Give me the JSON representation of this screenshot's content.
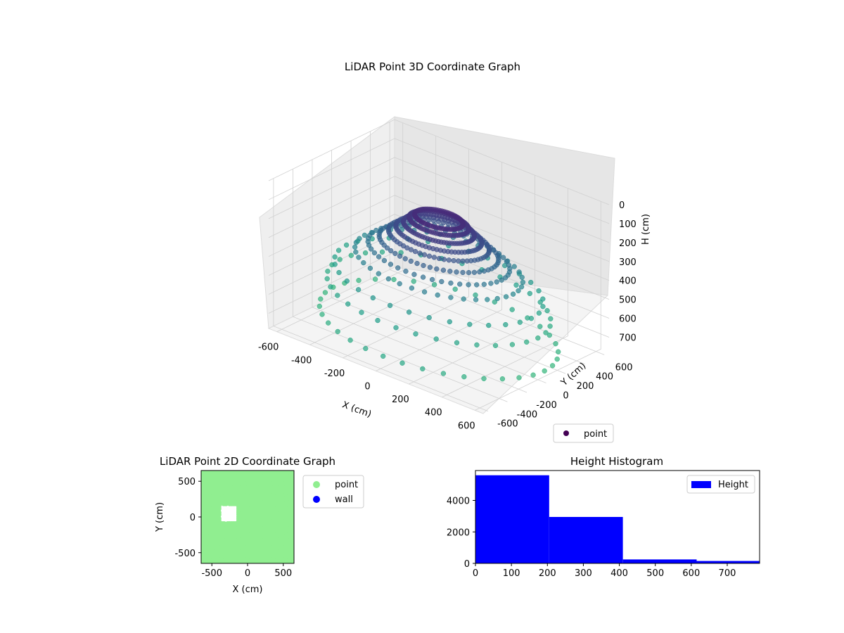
{
  "chart_data": [
    {
      "type": "scatter3d",
      "title": "LiDAR Point 3D Coordinate Graph",
      "xlabel": "X (cm)",
      "ylabel": "Y (cm)",
      "zlabel": "H (cm)",
      "xlim": [
        -650,
        650
      ],
      "ylim": [
        -650,
        650
      ],
      "zlim": [
        0,
        780
      ],
      "z_inverted": true,
      "x_ticks": [
        -600,
        -400,
        -200,
        0,
        200,
        400,
        600
      ],
      "y_ticks": [
        -600,
        -400,
        -200,
        0,
        200,
        400,
        600
      ],
      "z_ticks": [
        0,
        100,
        200,
        300,
        400,
        500,
        600,
        700
      ],
      "colormap": "viridis",
      "legend": {
        "label": "point",
        "placement": "lower-right"
      },
      "series": [
        {
          "name": "point",
          "color": "#440154",
          "rings": [
            {
              "r": 640,
              "h": 720,
              "count": 36
            },
            {
              "r": 600,
              "h": 560,
              "count": 34
            },
            {
              "r": 560,
              "h": 470,
              "count": 32
            },
            {
              "r": 450,
              "h": 380,
              "count": 40
            },
            {
              "r": 380,
              "h": 330,
              "count": 48
            },
            {
              "r": 320,
              "h": 290,
              "count": 56
            },
            {
              "r": 270,
              "h": 250,
              "count": 64
            },
            {
              "r": 230,
              "h": 220,
              "count": 72
            },
            {
              "r": 190,
              "h": 190,
              "count": 80
            },
            {
              "r": 160,
              "h": 160,
              "count": 80
            },
            {
              "r": 130,
              "h": 140,
              "count": 72
            }
          ]
        }
      ]
    },
    {
      "type": "scatter",
      "title": "LiDAR Point 2D Coordinate Graph",
      "xlabel": "X (cm)",
      "ylabel": "Y (cm)",
      "xlim": [
        -650,
        650
      ],
      "ylim": [
        -650,
        650
      ],
      "x_ticks": [
        -500,
        0,
        500
      ],
      "y_ticks": [
        500,
        0,
        -500
      ],
      "legend": {
        "placement": "outside-right"
      },
      "series": [
        {
          "name": "point",
          "color": "#90ee90"
        },
        {
          "name": "wall",
          "color": "#0000ff"
        }
      ]
    },
    {
      "type": "bar",
      "title": "Height Histogram",
      "xlabel": "",
      "ylabel": "",
      "bins": [
        [
          0,
          205
        ],
        [
          205,
          410
        ],
        [
          410,
          615
        ],
        [
          615,
          790
        ]
      ],
      "values": [
        5600,
        2950,
        250,
        150
      ],
      "xlim": [
        0,
        790
      ],
      "ylim": [
        0,
        5900
      ],
      "x_ticks": [
        0,
        100,
        200,
        300,
        400,
        500,
        600,
        700
      ],
      "y_ticks": [
        0,
        2000,
        4000
      ],
      "legend": {
        "label": "Height",
        "placement": "top-right"
      },
      "series": [
        {
          "name": "Height",
          "color": "#0000ff"
        }
      ]
    }
  ]
}
